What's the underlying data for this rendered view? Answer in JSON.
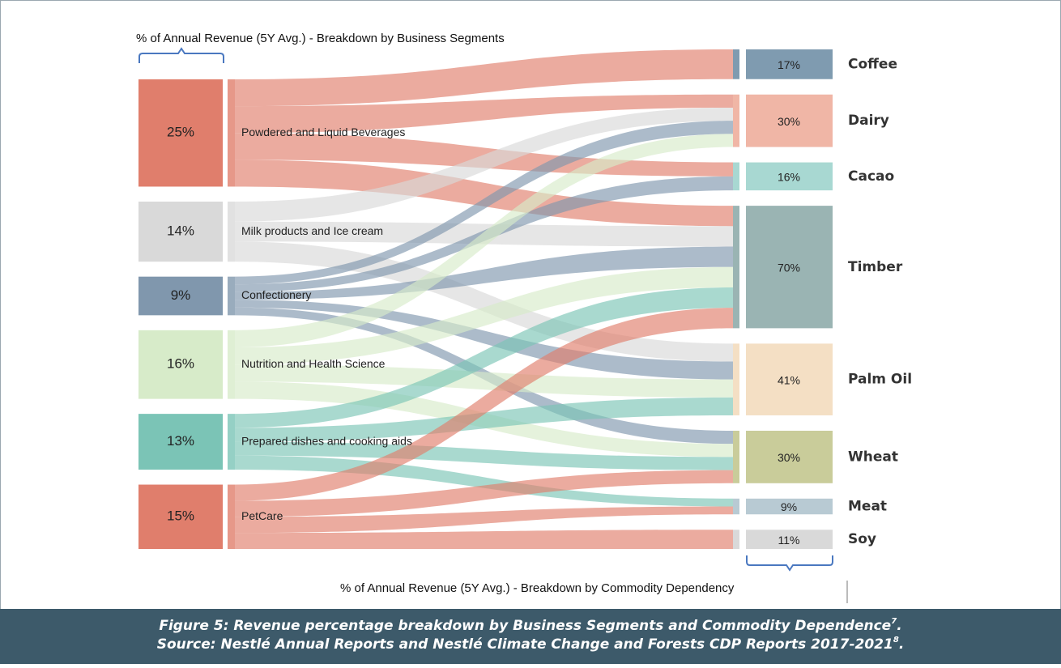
{
  "chart_data": {
    "type": "sankey",
    "title": "% of Annual Revenue (5Y Avg.) - Breakdown by Business Segments",
    "bottom_label": "% of Annual Revenue (5Y Avg.) - Breakdown by Commodity Dependency",
    "caption": [
      "Figure 5: Revenue percentage breakdown by Business Segments and Commodity Dependence",
      "7",
      ".",
      "Source: Nestlé Annual Reports and Nestlé Climate Change and Forests CDP Reports 2017-2021",
      "8",
      "."
    ],
    "sources": {
      "names": [
        "Powdered and Liquid Beverages",
        "Milk products and Ice cream",
        "Confectionery",
        "Nutrition and Health Science",
        "Prepared dishes and cooking aids",
        "PetCare"
      ],
      "values": [
        25,
        14,
        9,
        16,
        13,
        15
      ],
      "value_labels": [
        "25%",
        "14%",
        "9%",
        "16%",
        "13%",
        "15%"
      ],
      "colors": [
        "#e07e6c",
        "#d9d9d9",
        "#8097ad",
        "#d7ebc9",
        "#7bc4b6",
        "#e07e6c"
      ]
    },
    "targets": {
      "names": [
        "Coffee",
        "Dairy",
        "Cacao",
        "Timber",
        "Palm Oil",
        "Wheat",
        "Meat",
        "Soy"
      ],
      "values": [
        17,
        30,
        16,
        70,
        41,
        30,
        9,
        11
      ],
      "value_labels": [
        "17%",
        "30%",
        "16%",
        "70%",
        "41%",
        "30%",
        "9%",
        "11%"
      ],
      "colors": [
        "#7f9bb0",
        "#f0b6a6",
        "#a8d8d2",
        "#9ab4b3",
        "#f4dfc4",
        "#c9cc9a",
        "#b8cad3",
        "#d9d9d9"
      ]
    },
    "links": [
      [
        0,
        0
      ],
      [
        0,
        1
      ],
      [
        0,
        2
      ],
      [
        0,
        3
      ],
      [
        1,
        1
      ],
      [
        1,
        3
      ],
      [
        1,
        4
      ],
      [
        2,
        1
      ],
      [
        2,
        2
      ],
      [
        2,
        3
      ],
      [
        2,
        4
      ],
      [
        2,
        5
      ],
      [
        3,
        1
      ],
      [
        3,
        3
      ],
      [
        3,
        4
      ],
      [
        3,
        5
      ],
      [
        4,
        3
      ],
      [
        4,
        4
      ],
      [
        4,
        5
      ],
      [
        4,
        6
      ],
      [
        5,
        3
      ],
      [
        5,
        5
      ],
      [
        5,
        6
      ],
      [
        5,
        7
      ]
    ]
  }
}
